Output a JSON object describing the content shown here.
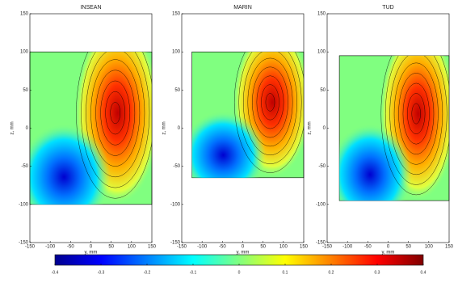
{
  "chart_data": [
    {
      "type": "contour",
      "title": "INSEAN",
      "xlabel": "y, mm",
      "ylabel": "z, mm",
      "xlim": [
        -150,
        150
      ],
      "ylim": [
        -150,
        150
      ],
      "xticks": [
        -150,
        -100,
        -50,
        0,
        50,
        100,
        150
      ],
      "yticks": [
        -150,
        -100,
        -50,
        0,
        50,
        100,
        150
      ],
      "domain": {
        "x": [
          -150,
          150
        ],
        "z": [
          -100,
          100
        ]
      }
    },
    {
      "type": "contour",
      "title": "MARIN",
      "xlabel": "y, mm",
      "ylabel": "z, mm",
      "xlim": [
        -150,
        150
      ],
      "ylim": [
        -150,
        150
      ],
      "xticks": [
        -150,
        -100,
        -50,
        0,
        50,
        100,
        150
      ],
      "yticks": [
        -150,
        -100,
        -50,
        0,
        50,
        100,
        150
      ],
      "domain": {
        "x": [
          -125,
          150
        ],
        "z": [
          -65,
          100
        ]
      }
    },
    {
      "type": "contour",
      "title": "TUD",
      "xlabel": "y, mm",
      "ylabel": "z, mm",
      "xlim": [
        -150,
        150
      ],
      "ylim": [
        -150,
        150
      ],
      "xticks": [
        -150,
        -100,
        -50,
        0,
        50,
        100,
        150
      ],
      "yticks": [
        -150,
        -100,
        -50,
        0,
        50,
        100,
        150
      ],
      "domain": {
        "x": [
          -120,
          150
        ],
        "z": [
          -95,
          95
        ]
      }
    },
    {
      "type": "colorbar",
      "xlim": [
        -0.4,
        0.4
      ],
      "xticks": [
        -0.4,
        -0.3,
        -0.2,
        -0.1,
        0,
        0.1,
        0.2,
        0.3,
        0.4
      ],
      "colors": [
        "#00008f",
        "#0000ff",
        "#0080ff",
        "#00ffff",
        "#80ff80",
        "#ffff00",
        "#ff8000",
        "#ff0000",
        "#800000"
      ]
    }
  ]
}
